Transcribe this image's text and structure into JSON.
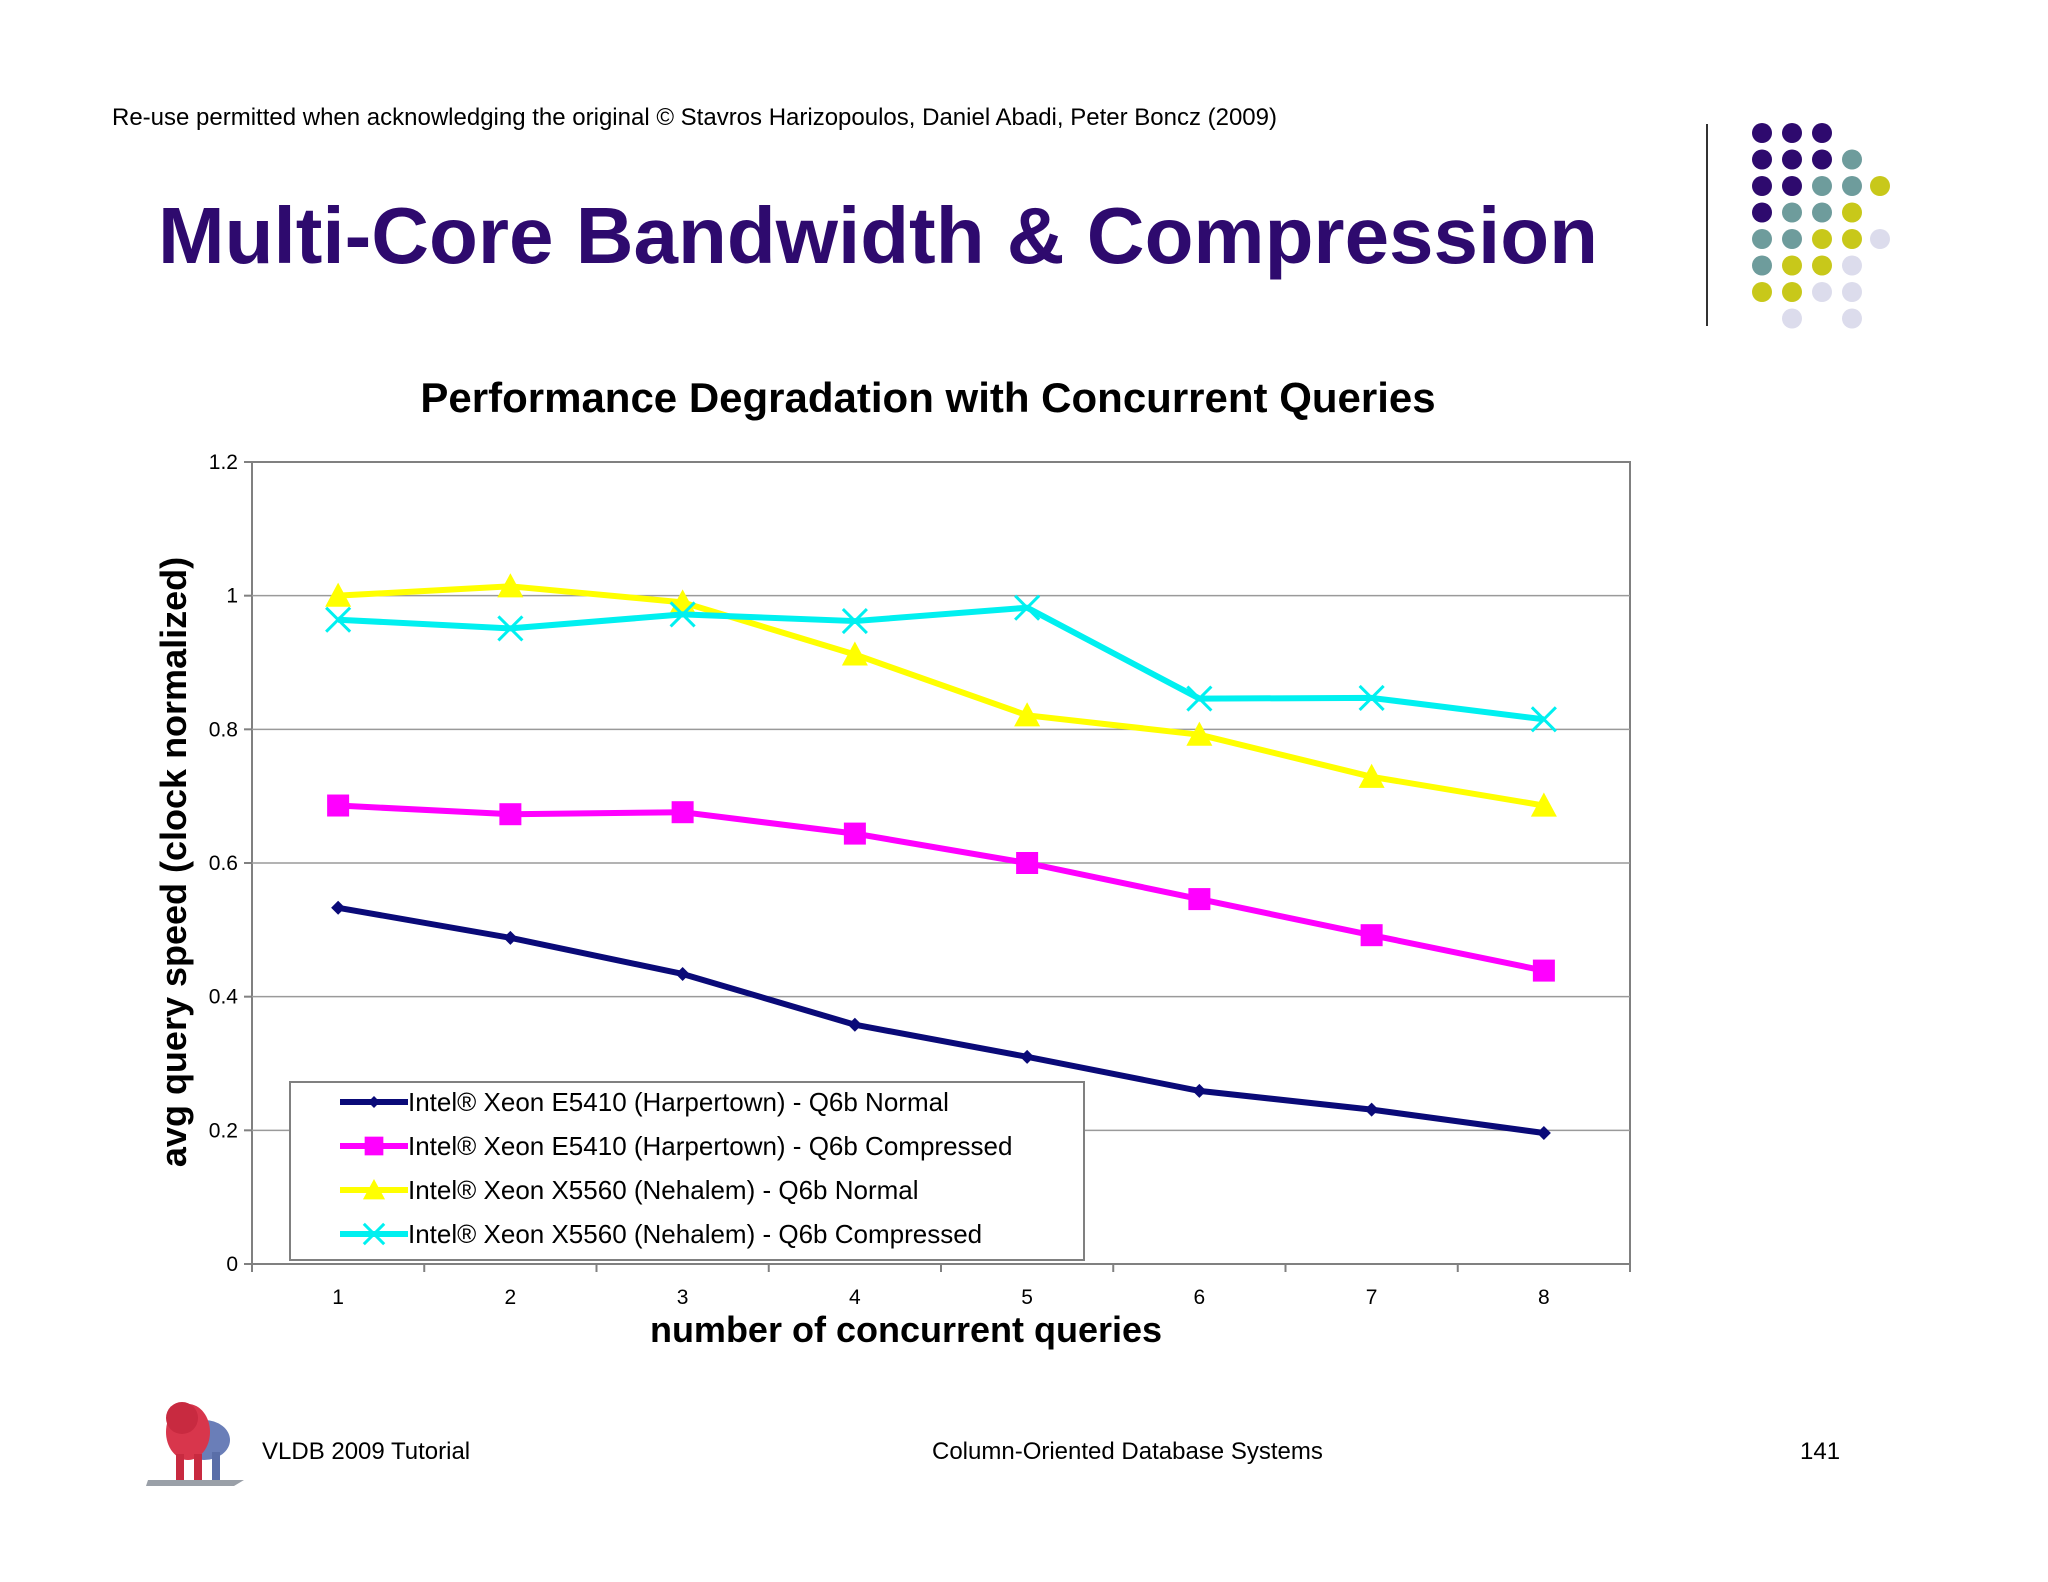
{
  "slide": {
    "header_note": "Re-use permitted when acknowledging the original © Stavros Harizopoulos, Daniel Abadi, Peter Boncz (2009)",
    "title": "Multi-Core Bandwidth & Compression",
    "footer_left": "VLDB 2009 Tutorial",
    "footer_center": "Column-Oriented Database Systems",
    "page_number": "141",
    "dot_colors": [
      "#2e0a6e",
      "#6e9c9c",
      "#c8c81a",
      "#dcdcec"
    ]
  },
  "chart_data": {
    "type": "line",
    "title": "Performance Degradation with Concurrent Queries",
    "xlabel": "number of concurrent queries",
    "ylabel": "avg query speed (clock normalized)",
    "categories": [
      "1",
      "2",
      "3",
      "4",
      "5",
      "6",
      "7",
      "8"
    ],
    "ylim": [
      0,
      1.2
    ],
    "yticks": [
      "0",
      "0.2",
      "0.4",
      "0.6",
      "0.8",
      "1",
      "1.2"
    ],
    "grid": true,
    "legend_position": "bottom-left",
    "series": [
      {
        "name": "Intel® Xeon E5410 (Harpertown) - Q6b Normal",
        "color": "#0a0a78",
        "marker": "diamond",
        "values": [
          0.533,
          0.488,
          0.434,
          0.358,
          0.31,
          0.259,
          0.231,
          0.196
        ]
      },
      {
        "name": "Intel® Xeon E5410 (Harpertown) - Q6b Compressed",
        "color": "#ff00ff",
        "marker": "square",
        "values": [
          0.686,
          0.673,
          0.676,
          0.644,
          0.6,
          0.546,
          0.492,
          0.439
        ]
      },
      {
        "name": "Intel® Xeon X5560 (Nehalem) - Q6b Normal",
        "color": "#ffff00",
        "marker": "triangle",
        "values": [
          1.0,
          1.014,
          0.99,
          0.912,
          0.821,
          0.792,
          0.729,
          0.686
        ]
      },
      {
        "name": "Intel® Xeon X5560 (Nehalem) - Q6b Compressed",
        "color": "#00f0f0",
        "marker": "x",
        "values": [
          0.964,
          0.951,
          0.972,
          0.962,
          0.982,
          0.846,
          0.847,
          0.815
        ]
      }
    ]
  }
}
